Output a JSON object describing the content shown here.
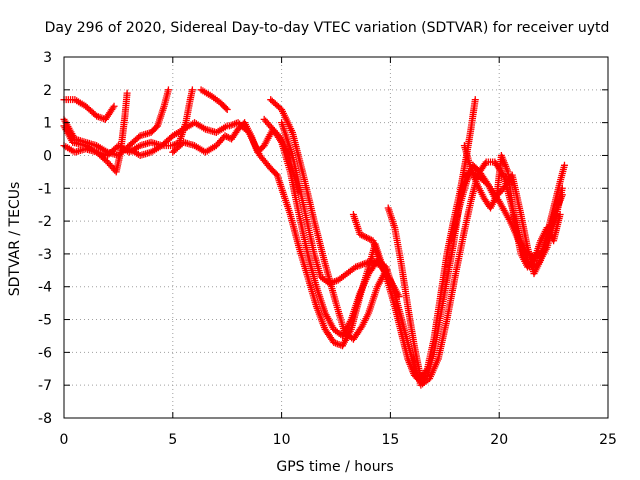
{
  "chart_data": {
    "type": "scatter",
    "title": "Day 296 of 2020, Sidereal Day-to-day VTEC variation (SDTVAR) for receiver uytd",
    "xlabel": "GPS time / hours",
    "ylabel": "SDTVAR / TECUs",
    "xlim": [
      0,
      25
    ],
    "ylim": [
      -8,
      3
    ],
    "xticks": [
      0,
      5,
      10,
      15,
      20,
      25
    ],
    "yticks": [
      -8,
      -7,
      -6,
      -5,
      -4,
      -3,
      -2,
      -1,
      0,
      1,
      2,
      3
    ],
    "grid": true,
    "marker": "+",
    "color": "#ff0000",
    "series": [
      {
        "points": [
          [
            0.0,
            1.7
          ],
          [
            0.5,
            1.7
          ],
          [
            1.0,
            1.5
          ],
          [
            1.5,
            1.2
          ],
          [
            1.9,
            1.1
          ],
          [
            2.1,
            1.3
          ],
          [
            2.3,
            1.5
          ]
        ]
      },
      {
        "points": [
          [
            0.0,
            1.1
          ],
          [
            0.5,
            0.5
          ],
          [
            1.0,
            0.4
          ],
          [
            1.5,
            0.3
          ],
          [
            2.0,
            0.1
          ],
          [
            2.5,
            0.0
          ],
          [
            3.0,
            0.3
          ],
          [
            3.5,
            0.6
          ],
          [
            4.0,
            0.7
          ],
          [
            4.3,
            0.9
          ],
          [
            4.6,
            1.5
          ],
          [
            4.8,
            2.0
          ]
        ]
      },
      {
        "points": [
          [
            0.0,
            0.3
          ],
          [
            0.5,
            0.1
          ],
          [
            1.0,
            0.2
          ],
          [
            1.5,
            0.1
          ],
          [
            2.0,
            -0.2
          ],
          [
            2.4,
            -0.5
          ],
          [
            2.6,
            0.1
          ],
          [
            2.8,
            1.2
          ],
          [
            2.9,
            1.9
          ]
        ]
      },
      {
        "points": [
          [
            0.0,
            0.9
          ],
          [
            0.4,
            0.4
          ],
          [
            1.0,
            0.3
          ],
          [
            1.5,
            0.1
          ],
          [
            2.0,
            0.0
          ],
          [
            2.5,
            0.3
          ],
          [
            3.0,
            0.1
          ],
          [
            3.5,
            0.3
          ],
          [
            4.0,
            0.4
          ],
          [
            4.5,
            0.3
          ],
          [
            5.0,
            0.3
          ],
          [
            5.3,
            0.4
          ],
          [
            5.6,
            1.0
          ],
          [
            5.8,
            1.7
          ],
          [
            5.9,
            2.0
          ]
        ]
      },
      {
        "points": [
          [
            3.0,
            0.2
          ],
          [
            3.5,
            0.0
          ],
          [
            4.0,
            0.1
          ],
          [
            4.5,
            0.3
          ],
          [
            5.0,
            0.6
          ],
          [
            5.5,
            0.8
          ],
          [
            6.0,
            1.0
          ],
          [
            6.5,
            0.8
          ],
          [
            7.0,
            0.7
          ],
          [
            7.5,
            0.9
          ]
        ]
      },
      {
        "points": [
          [
            5.0,
            0.1
          ],
          [
            5.5,
            0.4
          ],
          [
            6.0,
            0.3
          ],
          [
            6.5,
            0.1
          ],
          [
            7.0,
            0.3
          ],
          [
            7.4,
            0.6
          ],
          [
            7.7,
            0.5
          ],
          [
            8.0,
            0.8
          ],
          [
            8.3,
            1.0
          ],
          [
            8.6,
            0.6
          ],
          [
            8.9,
            0.1
          ],
          [
            9.2,
            0.3
          ],
          [
            9.6,
            0.8
          ],
          [
            10.0,
            0.5
          ],
          [
            10.4,
            -0.2
          ],
          [
            10.8,
            -1.1
          ]
        ]
      },
      {
        "points": [
          [
            6.3,
            2.0
          ],
          [
            6.8,
            1.8
          ],
          [
            7.2,
            1.6
          ],
          [
            7.5,
            1.4
          ]
        ]
      },
      {
        "points": [
          [
            7.6,
            0.9
          ],
          [
            8.0,
            1.0
          ],
          [
            8.5,
            0.7
          ],
          [
            9.0,
            0.0
          ],
          [
            9.5,
            -0.4
          ],
          [
            9.8,
            -0.6
          ],
          [
            10.0,
            -1.0
          ],
          [
            10.4,
            -1.8
          ],
          [
            10.8,
            -2.8
          ],
          [
            11.2,
            -3.7
          ],
          [
            11.6,
            -4.6
          ],
          [
            12.0,
            -5.3
          ],
          [
            12.4,
            -5.7
          ],
          [
            12.8,
            -5.8
          ],
          [
            13.2,
            -5.3
          ],
          [
            13.6,
            -4.3
          ],
          [
            14.0,
            -3.4
          ],
          [
            14.3,
            -2.7
          ],
          [
            14.6,
            -3.3
          ],
          [
            14.9,
            -3.9
          ],
          [
            15.2,
            -4.6
          ],
          [
            15.5,
            -5.4
          ],
          [
            15.8,
            -6.2
          ],
          [
            16.1,
            -6.7
          ],
          [
            16.4,
            -6.9
          ],
          [
            16.7,
            -6.7
          ],
          [
            17.0,
            -6.0
          ],
          [
            17.3,
            -4.9
          ],
          [
            17.6,
            -3.8
          ],
          [
            17.9,
            -2.7
          ],
          [
            18.1,
            -1.8
          ],
          [
            18.3,
            -1.0
          ],
          [
            18.6,
            -0.5
          ],
          [
            19.0,
            -0.6
          ],
          [
            19.5,
            -0.9
          ],
          [
            20.0,
            -1.4
          ],
          [
            20.5,
            -2.0
          ],
          [
            20.9,
            -2.6
          ],
          [
            21.3,
            -3.0
          ],
          [
            21.7,
            -3.1
          ],
          [
            22.0,
            -2.9
          ],
          [
            22.3,
            -2.3
          ],
          [
            22.6,
            -1.7
          ],
          [
            22.9,
            -1.2
          ]
        ]
      },
      {
        "points": [
          [
            9.5,
            1.7
          ],
          [
            10.0,
            1.4
          ],
          [
            10.5,
            0.7
          ],
          [
            11.0,
            -0.6
          ],
          [
            11.5,
            -2.0
          ],
          [
            12.0,
            -3.3
          ],
          [
            12.5,
            -4.5
          ],
          [
            12.9,
            -5.4
          ],
          [
            13.3,
            -5.6
          ],
          [
            13.7,
            -5.2
          ],
          [
            14.0,
            -4.8
          ],
          [
            14.4,
            -4.0
          ],
          [
            14.8,
            -3.5
          ]
        ]
      },
      {
        "points": [
          [
            10.0,
            1.0
          ],
          [
            10.5,
            0.0
          ],
          [
            11.0,
            -1.5
          ],
          [
            11.5,
            -3.0
          ],
          [
            11.8,
            -3.7
          ],
          [
            12.2,
            -3.9
          ],
          [
            12.6,
            -3.8
          ],
          [
            13.0,
            -3.6
          ],
          [
            13.4,
            -3.4
          ],
          [
            13.8,
            -3.3
          ],
          [
            14.2,
            -3.2
          ],
          [
            14.6,
            -3.4
          ],
          [
            15.0,
            -3.8
          ],
          [
            15.4,
            -4.3
          ]
        ]
      },
      {
        "points": [
          [
            9.2,
            1.1
          ],
          [
            9.6,
            0.8
          ],
          [
            10.0,
            0.4
          ],
          [
            10.4,
            -0.5
          ],
          [
            10.8,
            -1.8
          ],
          [
            11.2,
            -3.0
          ],
          [
            11.6,
            -4.0
          ],
          [
            12.0,
            -4.8
          ],
          [
            12.4,
            -5.3
          ],
          [
            12.8,
            -5.5
          ],
          [
            13.2,
            -5.0
          ],
          [
            13.6,
            -4.2
          ],
          [
            14.0,
            -3.6
          ],
          [
            14.4,
            -3.2
          ],
          [
            14.8,
            -3.4
          ],
          [
            15.2,
            -4.2
          ],
          [
            15.6,
            -5.2
          ],
          [
            16.0,
            -6.2
          ],
          [
            16.4,
            -7.0
          ],
          [
            16.8,
            -6.8
          ],
          [
            17.2,
            -6.2
          ],
          [
            17.6,
            -5.0
          ],
          [
            18.0,
            -3.6
          ],
          [
            18.4,
            -2.3
          ],
          [
            18.7,
            -1.4
          ],
          [
            19.0,
            -0.6
          ],
          [
            19.4,
            -0.2
          ],
          [
            19.8,
            -0.2
          ],
          [
            20.2,
            -0.6
          ],
          [
            20.6,
            -1.6
          ],
          [
            21.0,
            -2.6
          ],
          [
            21.4,
            -3.4
          ],
          [
            21.8,
            -3.3
          ],
          [
            22.2,
            -2.8
          ],
          [
            22.6,
            -1.9
          ],
          [
            22.9,
            -1.0
          ]
        ]
      },
      {
        "points": [
          [
            13.3,
            -1.8
          ],
          [
            13.6,
            -2.4
          ],
          [
            13.9,
            -2.5
          ],
          [
            14.2,
            -2.6
          ],
          [
            14.5,
            -3.2
          ],
          [
            14.8,
            -3.6
          ],
          [
            15.0,
            -3.9
          ]
        ]
      },
      {
        "points": [
          [
            14.9,
            -1.6
          ],
          [
            15.2,
            -2.2
          ],
          [
            15.5,
            -3.3
          ],
          [
            15.8,
            -4.6
          ],
          [
            16.1,
            -5.8
          ],
          [
            16.4,
            -6.8
          ],
          [
            16.7,
            -6.5
          ],
          [
            17.0,
            -5.6
          ],
          [
            17.3,
            -4.3
          ],
          [
            17.6,
            -3.0
          ],
          [
            17.9,
            -2.0
          ],
          [
            18.2,
            -1.1
          ],
          [
            18.5,
            0.0
          ],
          [
            18.7,
            0.8
          ],
          [
            18.9,
            1.7
          ]
        ]
      },
      {
        "points": [
          [
            17.8,
            -2.6
          ],
          [
            18.2,
            -1.5
          ],
          [
            18.5,
            -0.8
          ],
          [
            18.8,
            -0.3
          ],
          [
            19.1,
            -0.5
          ],
          [
            19.5,
            -0.9
          ],
          [
            19.8,
            -1.3
          ],
          [
            20.2,
            -1.0
          ],
          [
            20.6,
            -0.6
          ],
          [
            21.0,
            -1.8
          ],
          [
            21.3,
            -2.8
          ],
          [
            21.6,
            -3.6
          ],
          [
            21.9,
            -3.2
          ],
          [
            22.2,
            -2.4
          ],
          [
            22.5,
            -1.6
          ],
          [
            22.8,
            -0.8
          ],
          [
            23.0,
            -0.3
          ]
        ]
      },
      {
        "points": [
          [
            18.4,
            0.3
          ],
          [
            18.7,
            -0.4
          ],
          [
            19.0,
            -0.9
          ],
          [
            19.3,
            -1.3
          ],
          [
            19.6,
            -1.6
          ],
          [
            19.9,
            -1.2
          ],
          [
            20.1,
            0.0
          ],
          [
            20.4,
            -0.5
          ],
          [
            20.7,
            -2.0
          ],
          [
            21.0,
            -3.0
          ],
          [
            21.3,
            -3.4
          ],
          [
            21.6,
            -3.2
          ],
          [
            21.9,
            -2.6
          ],
          [
            22.2,
            -2.2
          ],
          [
            22.5,
            -2.6
          ],
          [
            22.8,
            -1.8
          ]
        ]
      }
    ]
  }
}
